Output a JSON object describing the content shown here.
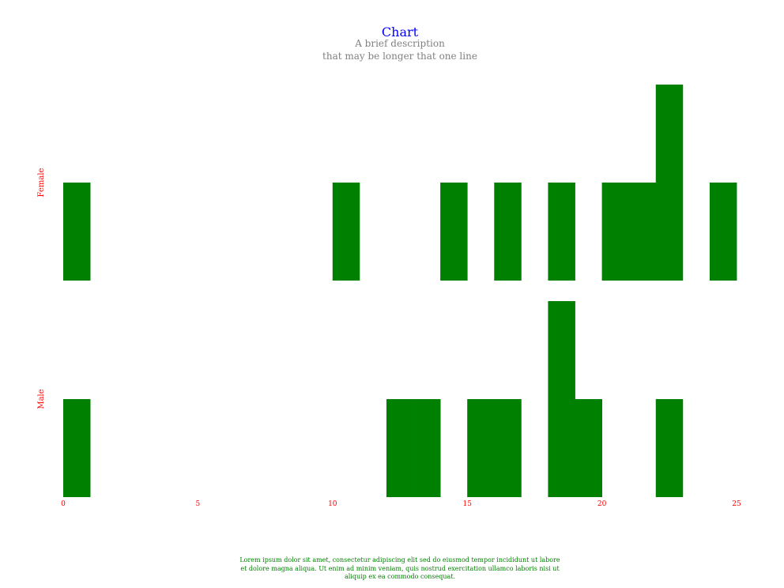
{
  "chart_data": {
    "type": "bar",
    "layout": "stacked-histogram-rows",
    "title": "Chart",
    "subtitle_lines": [
      "A brief description",
      "that may be longer that one line"
    ],
    "rows": [
      {
        "name": "Female",
        "bins": [
          {
            "x0": 0,
            "x1": 1,
            "count": 1
          },
          {
            "x0": 10,
            "x1": 11,
            "count": 1
          },
          {
            "x0": 14,
            "x1": 15,
            "count": 1
          },
          {
            "x0": 16,
            "x1": 17,
            "count": 1
          },
          {
            "x0": 18,
            "x1": 19,
            "count": 1
          },
          {
            "x0": 20,
            "x1": 21,
            "count": 1
          },
          {
            "x0": 21,
            "x1": 22,
            "count": 1
          },
          {
            "x0": 22,
            "x1": 23,
            "count": 2
          },
          {
            "x0": 24,
            "x1": 25,
            "count": 1
          }
        ]
      },
      {
        "name": "Male",
        "bins": [
          {
            "x0": 0,
            "x1": 1,
            "count": 1
          },
          {
            "x0": 12,
            "x1": 13,
            "count": 1
          },
          {
            "x0": 13,
            "x1": 14,
            "count": 1
          },
          {
            "x0": 15,
            "x1": 16,
            "count": 1
          },
          {
            "x0": 16,
            "x1": 17,
            "count": 1
          },
          {
            "x0": 18,
            "x1": 19,
            "count": 2
          },
          {
            "x0": 19,
            "x1": 20,
            "count": 1
          },
          {
            "x0": 22,
            "x1": 23,
            "count": 1
          }
        ]
      }
    ],
    "xlim": [
      0,
      25
    ],
    "x_ticks": [
      0,
      5,
      10,
      15,
      20,
      25
    ],
    "count_max": 2,
    "grid": false,
    "caption": "Lorem ipsum dolor sit amet, consectetur adipiscing elit sed do eiusmod tempor incididunt ut labore et dolore magna aliqua. Ut enim ad minim veniam, quis nostrud exercitation ullamco laboris nisi ut aliquip ex ea commodo consequat.",
    "colors": {
      "title": "#0000ff",
      "subtitle": "#808080",
      "bar": "#008000",
      "axis_label": "#ff0000",
      "caption": "#008000"
    }
  }
}
